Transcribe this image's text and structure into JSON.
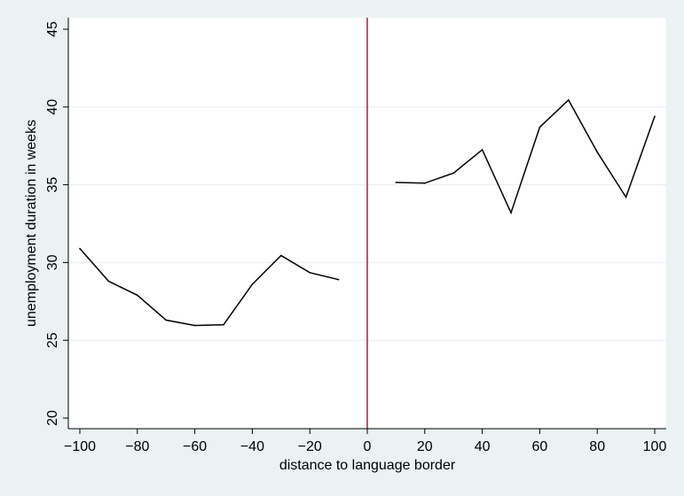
{
  "chart_data": {
    "type": "line",
    "xlabel": "distance to language border",
    "ylabel": "unemployment duration in weeks",
    "xlim": [
      -100,
      100
    ],
    "ylim": [
      20,
      45
    ],
    "xticks": [
      -100,
      -80,
      -60,
      -40,
      -20,
      0,
      20,
      40,
      60,
      80,
      100
    ],
    "yticks": [
      20,
      25,
      30,
      35,
      40,
      45
    ],
    "xtick_labels": [
      "−100",
      "−80",
      "−60",
      "−40",
      "−20",
      "0",
      "20",
      "40",
      "60",
      "80",
      "100"
    ],
    "ytick_labels": [
      "20",
      "25",
      "30",
      "35",
      "40",
      "45"
    ],
    "grid": "horizontal",
    "vline": {
      "x": 0,
      "color": "#a0203a"
    },
    "line_color": "#000000",
    "plot_background": "#ffffff",
    "page_background": "#eaf2f3",
    "series": [
      {
        "x": [
          -100,
          -90,
          -80,
          -70,
          -60,
          -50,
          -40,
          -30,
          -20,
          -10
        ],
        "y": [
          30.9,
          28.8,
          27.9,
          26.3,
          25.95,
          26.0,
          28.6,
          30.45,
          29.35,
          28.9
        ]
      },
      {
        "x": [
          10,
          20,
          30,
          40,
          50,
          60,
          70,
          80,
          90,
          100
        ],
        "y": [
          35.15,
          35.1,
          35.75,
          37.25,
          33.2,
          38.7,
          40.45,
          37.1,
          34.2,
          39.4
        ]
      }
    ]
  }
}
